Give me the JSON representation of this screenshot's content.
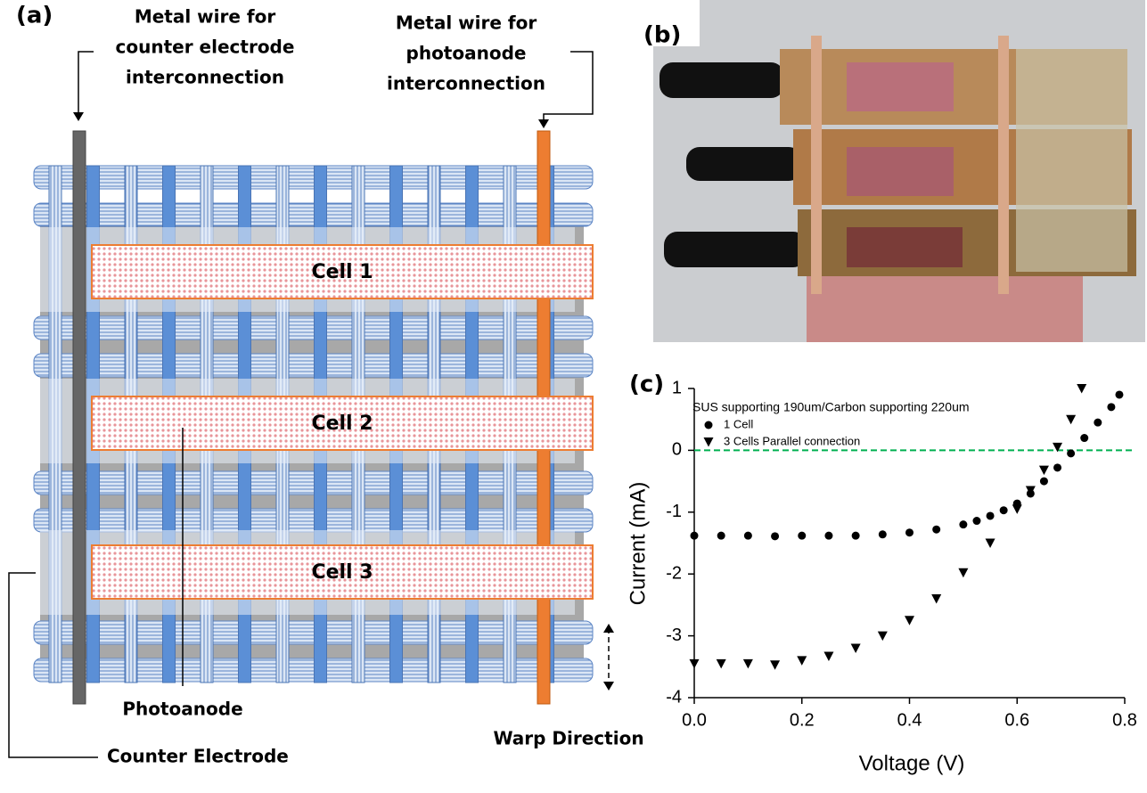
{
  "panel_a": {
    "label": "(a)",
    "counter_wire_label": [
      "Metal wire for",
      "counter electrode",
      "interconnection"
    ],
    "photoanode_wire_label": [
      "Metal wire for",
      "photoanode",
      "interconnection"
    ],
    "cells": [
      "Cell 1",
      "Cell 2",
      "Cell 3"
    ],
    "photoanode": "Photoanode",
    "counter_electrode": "Counter Electrode",
    "warp_direction": "Warp Direction"
  },
  "panel_b": {
    "label": "(b)"
  },
  "panel_c": {
    "label": "(c)"
  },
  "chart_data": {
    "type": "scatter",
    "legend_title": "SUS supporting 190um/Carbon supporting 220um",
    "x_label": "Voltage (V)",
    "y_label": "Current (mA)",
    "xlim": [
      0,
      0.8
    ],
    "ylim": [
      -4,
      1
    ],
    "xticks": [
      {
        "value": 0,
        "label": "0.0"
      },
      0.2,
      0.4,
      0.6,
      0.8
    ],
    "yticks": [
      -4,
      -3,
      -2,
      -1,
      0,
      1
    ],
    "reference_line": {
      "value": 0,
      "color": "#00b050"
    },
    "legend": "upper left",
    "series": [
      {
        "name": "1 Cell",
        "color": "#000000",
        "marker": "circle",
        "x": [
          0,
          0.05,
          0.1,
          0.15,
          0.2,
          0.25,
          0.3,
          0.35,
          0.4,
          0.45,
          0.5,
          0.525,
          0.55,
          0.575,
          0.6,
          0.625,
          0.65,
          0.675,
          0.7,
          0.725,
          0.75,
          0.775,
          0.79
        ],
        "values": [
          -1.38,
          -1.38,
          -1.38,
          -1.39,
          -1.38,
          -1.38,
          -1.38,
          -1.36,
          -1.33,
          -1.28,
          -1.2,
          -1.14,
          -1.06,
          -0.97,
          -0.86,
          -0.7,
          -0.5,
          -0.28,
          -0.05,
          0.2,
          0.45,
          0.7,
          0.9
        ]
      },
      {
        "name": "3 Cells Parallel connection",
        "color": "#000000",
        "marker": "triangle-down",
        "x": [
          0,
          0.05,
          0.1,
          0.15,
          0.2,
          0.25,
          0.3,
          0.35,
          0.4,
          0.45,
          0.5,
          0.55,
          0.6,
          0.625,
          0.65,
          0.675,
          0.7,
          0.72
        ],
        "values": [
          -3.45,
          -3.45,
          -3.45,
          -3.47,
          -3.4,
          -3.33,
          -3.2,
          -3.0,
          -2.75,
          -2.4,
          -1.98,
          -1.5,
          -0.95,
          -0.65,
          -0.32,
          0.05,
          0.5,
          1.0
        ]
      }
    ]
  }
}
